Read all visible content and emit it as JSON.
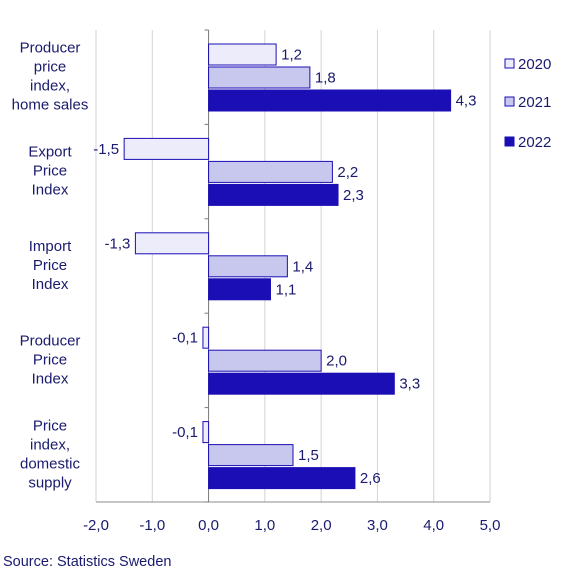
{
  "chart_data": {
    "type": "bar",
    "orientation": "horizontal",
    "categories": [
      [
        "Producer",
        "price",
        "index,",
        "home sales"
      ],
      [
        "Export",
        "Price",
        "Index"
      ],
      [
        "Import",
        "Price",
        "Index"
      ],
      [
        "Producer",
        "Price",
        "Index"
      ],
      [
        "Price",
        "index,",
        "domestic",
        "supply"
      ]
    ],
    "series": [
      {
        "name": "2020",
        "color": "#ececfb",
        "values": [
          1.2,
          -1.5,
          -1.3,
          -0.1,
          -0.1
        ],
        "labels": [
          "1,2",
          "-1,5",
          "-1,3",
          "-0,1",
          "-0,1"
        ]
      },
      {
        "name": "2021",
        "color": "#c8c8ee",
        "values": [
          1.8,
          2.2,
          1.4,
          2.0,
          1.5
        ],
        "labels": [
          "1,8",
          "2,2",
          "1,4",
          "2,0",
          "1,5"
        ]
      },
      {
        "name": "2022",
        "color": "#1b0eb4",
        "values": [
          4.3,
          2.3,
          1.1,
          3.3,
          2.6
        ],
        "labels": [
          "4,3",
          "2,3",
          "1,1",
          "3,3",
          "2,6"
        ]
      }
    ],
    "xlim": [
      -2.0,
      5.0
    ],
    "xticks": [
      -2.0,
      -1.0,
      0.0,
      1.0,
      2.0,
      3.0,
      4.0,
      5.0
    ],
    "xtick_labels": [
      "-2,0",
      "-1,0",
      "0,0",
      "1,0",
      "2,0",
      "3,0",
      "4,0",
      "5,0"
    ],
    "grid": "vertical",
    "legend_position": "right",
    "bar_stroke": "#1b0eb4",
    "text_color": "#1a1a6e"
  },
  "source": "Source: Statistics Sweden"
}
